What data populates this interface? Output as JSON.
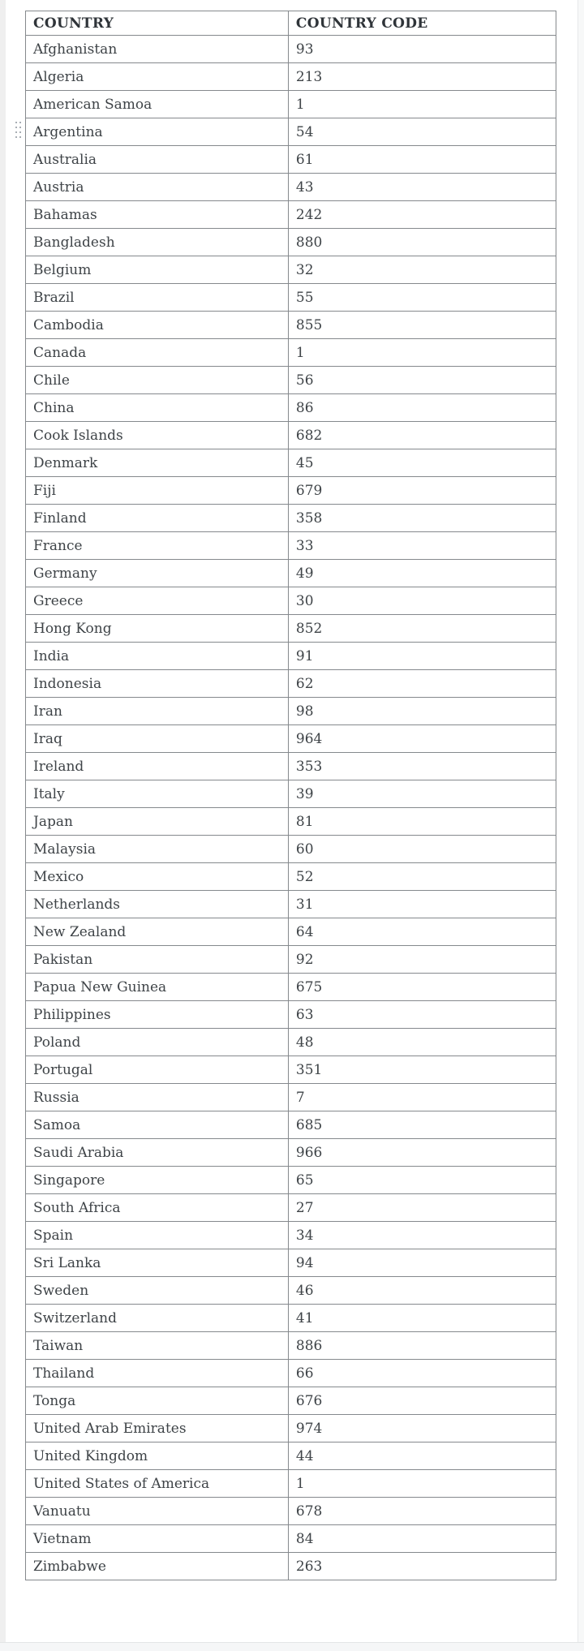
{
  "page": {
    "background": "#ffffff",
    "border_color": "#85898d",
    "header_text_color": "#2f3439",
    "body_text_color": "#3e4347"
  },
  "icons": {
    "drag_handle": "row-drag-handle"
  },
  "table": {
    "columns": {
      "country": "COUNTRY",
      "code": "COUNTRY CODE"
    },
    "rows": [
      {
        "country": "Afghanistan",
        "code": "93"
      },
      {
        "country": "Algeria",
        "code": "213"
      },
      {
        "country": "American Samoa",
        "code": "1"
      },
      {
        "country": "Argentina",
        "code": "54"
      },
      {
        "country": "Australia",
        "code": "61"
      },
      {
        "country": "Austria",
        "code": "43"
      },
      {
        "country": "Bahamas",
        "code": "242"
      },
      {
        "country": "Bangladesh",
        "code": "880"
      },
      {
        "country": "Belgium",
        "code": "32"
      },
      {
        "country": "Brazil",
        "code": "55"
      },
      {
        "country": "Cambodia",
        "code": "855"
      },
      {
        "country": "Canada",
        "code": "1"
      },
      {
        "country": "Chile",
        "code": "56"
      },
      {
        "country": "China",
        "code": "86"
      },
      {
        "country": "Cook Islands",
        "code": "682"
      },
      {
        "country": "Denmark",
        "code": "45"
      },
      {
        "country": "Fiji",
        "code": "679"
      },
      {
        "country": "Finland",
        "code": "358"
      },
      {
        "country": "France",
        "code": "33"
      },
      {
        "country": "Germany",
        "code": "49"
      },
      {
        "country": "Greece",
        "code": "30"
      },
      {
        "country": "Hong Kong",
        "code": "852"
      },
      {
        "country": "India",
        "code": "91"
      },
      {
        "country": "Indonesia",
        "code": "62"
      },
      {
        "country": "Iran",
        "code": "98"
      },
      {
        "country": "Iraq",
        "code": "964"
      },
      {
        "country": "Ireland",
        "code": "353"
      },
      {
        "country": "Italy",
        "code": "39"
      },
      {
        "country": "Japan",
        "code": "81"
      },
      {
        "country": "Malaysia",
        "code": "60"
      },
      {
        "country": "Mexico",
        "code": "52"
      },
      {
        "country": "Netherlands",
        "code": "31"
      },
      {
        "country": "New Zealand",
        "code": "64"
      },
      {
        "country": "Pakistan",
        "code": "92"
      },
      {
        "country": "Papua New Guinea",
        "code": "675"
      },
      {
        "country": "Philippines",
        "code": "63"
      },
      {
        "country": "Poland",
        "code": "48"
      },
      {
        "country": "Portugal",
        "code": "351"
      },
      {
        "country": "Russia",
        "code": "7"
      },
      {
        "country": "Samoa",
        "code": "685"
      },
      {
        "country": "Saudi Arabia",
        "code": "966"
      },
      {
        "country": "Singapore",
        "code": "65"
      },
      {
        "country": "South Africa",
        "code": "27"
      },
      {
        "country": "Spain",
        "code": "34"
      },
      {
        "country": "Sri Lanka",
        "code": "94"
      },
      {
        "country": "Sweden",
        "code": "46"
      },
      {
        "country": "Switzerland",
        "code": "41"
      },
      {
        "country": "Taiwan",
        "code": "886"
      },
      {
        "country": "Thailand",
        "code": "66"
      },
      {
        "country": "Tonga",
        "code": "676"
      },
      {
        "country": "United Arab Emirates",
        "code": "974"
      },
      {
        "country": "United Kingdom",
        "code": "44"
      },
      {
        "country": "United States of America",
        "code": "1"
      },
      {
        "country": "Vanuatu",
        "code": "678"
      },
      {
        "country": "Vietnam",
        "code": "84"
      },
      {
        "country": "Zimbabwe",
        "code": "263"
      }
    ]
  }
}
